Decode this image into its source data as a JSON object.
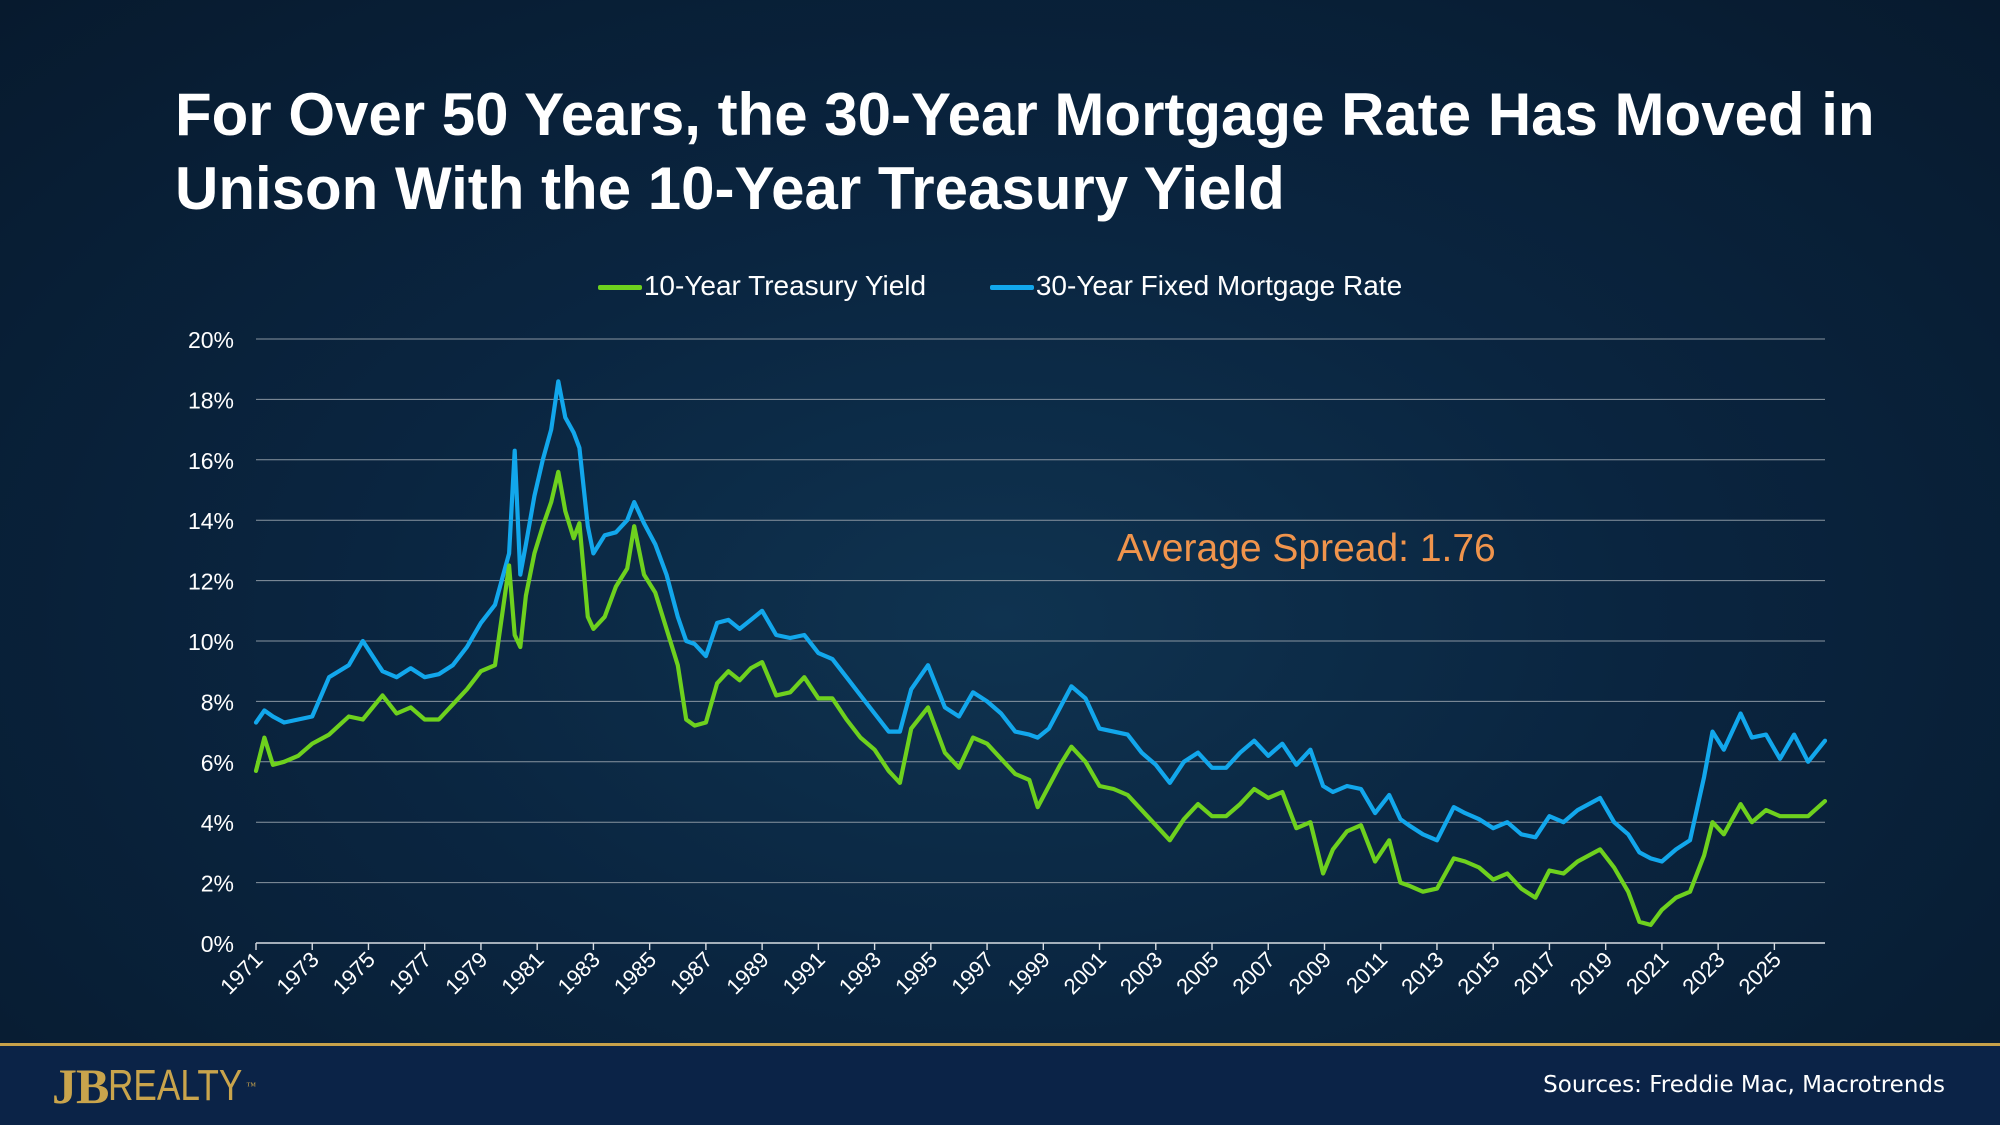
{
  "title": "For Over 50 Years, the 30-Year Mortgage Rate Has Moved in Unison With the 10-Year Treasury Yield",
  "annotation": "Average Spread: 1.76",
  "sources": "Sources: Freddie Mac, Macrotrends",
  "logo": {
    "mark": "JB",
    "text": "REALTY",
    "tm": "™"
  },
  "colors": {
    "treasury": "#6ed11e",
    "mortgage": "#12a7ec",
    "annotation": "#f0944c",
    "accent": "#c9a44c"
  },
  "chart_data": {
    "type": "line",
    "ylim": [
      0,
      20
    ],
    "xlim": [
      1971,
      2026.8
    ],
    "y_ticks": [
      "0%",
      "2%",
      "4%",
      "6%",
      "8%",
      "10%",
      "12%",
      "14%",
      "16%",
      "18%",
      "20%"
    ],
    "x_ticks": [
      "1971",
      "1973",
      "1975",
      "1977",
      "1979",
      "1981",
      "1983",
      "1985",
      "1987",
      "1989",
      "1991",
      "1993",
      "1995",
      "1997",
      "1999",
      "2001",
      "2003",
      "2005",
      "2007",
      "2009",
      "2011",
      "2013",
      "2015",
      "2017",
      "2019",
      "2021",
      "2023",
      "2025"
    ],
    "grid": true,
    "legend_position": "top-center",
    "series": [
      {
        "name": "10-Year Treasury Yield",
        "x": [
          1971.0,
          1971.3,
          1971.6,
          1972.0,
          1972.5,
          1973.0,
          1973.6,
          1974.3,
          1974.8,
          1975.5,
          1976.0,
          1976.5,
          1977.0,
          1977.5,
          1978.0,
          1978.5,
          1979.0,
          1979.5,
          1980.0,
          1980.2,
          1980.4,
          1980.6,
          1980.9,
          1981.2,
          1981.5,
          1981.75,
          1982.0,
          1982.3,
          1982.5,
          1982.8,
          1983.0,
          1983.4,
          1983.8,
          1984.2,
          1984.45,
          1984.8,
          1985.2,
          1985.6,
          1986.0,
          1986.3,
          1986.6,
          1987.0,
          1987.4,
          1987.8,
          1988.2,
          1988.6,
          1989.0,
          1989.5,
          1990.0,
          1990.5,
          1991.0,
          1991.5,
          1992.0,
          1992.5,
          1993.0,
          1993.5,
          1993.9,
          1994.3,
          1994.9,
          1995.5,
          1996.0,
          1996.5,
          1997.0,
          1997.5,
          1998.0,
          1998.5,
          1998.8,
          1999.2,
          1999.6,
          2000.0,
          2000.5,
          2001.0,
          2001.5,
          2002.0,
          2002.5,
          2003.0,
          2003.5,
          2004.0,
          2004.5,
          2005.0,
          2005.5,
          2006.0,
          2006.5,
          2007.0,
          2007.5,
          2008.0,
          2008.5,
          2008.95,
          2009.3,
          2009.8,
          2010.3,
          2010.8,
          2011.3,
          2011.7,
          2012.0,
          2012.5,
          2013.0,
          2013.6,
          2014.0,
          2014.5,
          2015.0,
          2015.5,
          2016.0,
          2016.5,
          2017.0,
          2017.5,
          2018.0,
          2018.8,
          2019.3,
          2019.8,
          2020.2,
          2020.6,
          2021.0,
          2021.5,
          2022.0,
          2022.5,
          2022.8,
          2023.2,
          2023.8,
          2024.2,
          2024.7,
          2025.2,
          2025.7,
          2026.2,
          2026.8
        ],
        "values": [
          5.7,
          6.8,
          5.9,
          6.0,
          6.2,
          6.6,
          6.9,
          7.5,
          7.4,
          8.2,
          7.6,
          7.8,
          7.4,
          7.4,
          7.9,
          8.4,
          9.0,
          9.2,
          12.5,
          10.2,
          9.8,
          11.5,
          12.9,
          13.8,
          14.6,
          15.6,
          14.3,
          13.4,
          13.9,
          10.8,
          10.4,
          10.8,
          11.8,
          12.4,
          13.8,
          12.2,
          11.6,
          10.4,
          9.2,
          7.4,
          7.2,
          7.3,
          8.6,
          9.0,
          8.7,
          9.1,
          9.3,
          8.2,
          8.3,
          8.8,
          8.1,
          8.1,
          7.4,
          6.8,
          6.4,
          5.7,
          5.3,
          7.1,
          7.8,
          6.3,
          5.8,
          6.8,
          6.6,
          6.1,
          5.6,
          5.4,
          4.5,
          5.2,
          5.9,
          6.5,
          6.0,
          5.2,
          5.1,
          4.9,
          4.4,
          3.9,
          3.4,
          4.1,
          4.6,
          4.2,
          4.2,
          4.6,
          5.1,
          4.8,
          5.0,
          3.8,
          4.0,
          2.3,
          3.1,
          3.7,
          3.9,
          2.7,
          3.4,
          2.0,
          1.9,
          1.7,
          1.8,
          2.8,
          2.7,
          2.5,
          2.1,
          2.3,
          1.8,
          1.5,
          2.4,
          2.3,
          2.7,
          3.1,
          2.5,
          1.7,
          0.7,
          0.6,
          1.1,
          1.5,
          1.7,
          2.9,
          4.0,
          3.6,
          4.6,
          4.0,
          4.4,
          4.2,
          4.2,
          4.2,
          4.7
        ]
      },
      {
        "name": "30-Year Fixed Mortgage Rate",
        "x": [
          1971.0,
          1971.3,
          1971.6,
          1972.0,
          1972.5,
          1973.0,
          1973.6,
          1974.3,
          1974.8,
          1975.5,
          1976.0,
          1976.5,
          1977.0,
          1977.5,
          1978.0,
          1978.5,
          1979.0,
          1979.5,
          1980.0,
          1980.2,
          1980.4,
          1980.6,
          1980.9,
          1981.2,
          1981.5,
          1981.75,
          1982.0,
          1982.3,
          1982.5,
          1982.8,
          1983.0,
          1983.4,
          1983.8,
          1984.2,
          1984.45,
          1984.8,
          1985.2,
          1985.6,
          1986.0,
          1986.3,
          1986.6,
          1987.0,
          1987.4,
          1987.8,
          1988.2,
          1988.6,
          1989.0,
          1989.5,
          1990.0,
          1990.5,
          1991.0,
          1991.5,
          1992.0,
          1992.5,
          1993.0,
          1993.5,
          1993.9,
          1994.3,
          1994.9,
          1995.5,
          1996.0,
          1996.5,
          1997.0,
          1997.5,
          1998.0,
          1998.5,
          1998.8,
          1999.2,
          1999.6,
          2000.0,
          2000.5,
          2001.0,
          2001.5,
          2002.0,
          2002.5,
          2003.0,
          2003.5,
          2004.0,
          2004.5,
          2005.0,
          2005.5,
          2006.0,
          2006.5,
          2007.0,
          2007.5,
          2008.0,
          2008.5,
          2008.95,
          2009.3,
          2009.8,
          2010.3,
          2010.8,
          2011.3,
          2011.7,
          2012.0,
          2012.5,
          2013.0,
          2013.6,
          2014.0,
          2014.5,
          2015.0,
          2015.5,
          2016.0,
          2016.5,
          2017.0,
          2017.5,
          2018.0,
          2018.8,
          2019.3,
          2019.8,
          2020.2,
          2020.6,
          2021.0,
          2021.5,
          2022.0,
          2022.5,
          2022.8,
          2023.2,
          2023.8,
          2024.2,
          2024.7,
          2025.2,
          2025.7,
          2026.2,
          2026.8
        ],
        "values": [
          7.3,
          7.7,
          7.5,
          7.3,
          7.4,
          7.5,
          8.8,
          9.2,
          10.0,
          9.0,
          8.8,
          9.1,
          8.8,
          8.9,
          9.2,
          9.8,
          10.6,
          11.2,
          12.9,
          16.3,
          12.2,
          13.2,
          14.8,
          16.0,
          17.0,
          18.6,
          17.4,
          16.9,
          16.4,
          13.8,
          12.9,
          13.5,
          13.6,
          14.0,
          14.6,
          13.9,
          13.2,
          12.2,
          10.8,
          10.0,
          9.9,
          9.5,
          10.6,
          10.7,
          10.4,
          10.7,
          11.0,
          10.2,
          10.1,
          10.2,
          9.6,
          9.4,
          8.8,
          8.2,
          7.6,
          7.0,
          7.0,
          8.4,
          9.2,
          7.8,
          7.5,
          8.3,
          8.0,
          7.6,
          7.0,
          6.9,
          6.8,
          7.1,
          7.8,
          8.5,
          8.1,
          7.1,
          7.0,
          6.9,
          6.3,
          5.9,
          5.3,
          6.0,
          6.3,
          5.8,
          5.8,
          6.3,
          6.7,
          6.2,
          6.6,
          5.9,
          6.4,
          5.2,
          5.0,
          5.2,
          5.1,
          4.3,
          4.9,
          4.1,
          3.9,
          3.6,
          3.4,
          4.5,
          4.3,
          4.1,
          3.8,
          4.0,
          3.6,
          3.5,
          4.2,
          4.0,
          4.4,
          4.8,
          4.0,
          3.6,
          3.0,
          2.8,
          2.7,
          3.1,
          3.4,
          5.5,
          7.0,
          6.4,
          7.6,
          6.8,
          6.9,
          6.1,
          6.9,
          6.0,
          6.7
        ]
      }
    ]
  }
}
